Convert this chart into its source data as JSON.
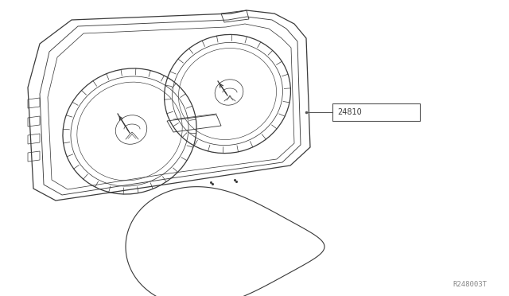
{
  "bg_color": "#ffffff",
  "line_color": "#3a3a3a",
  "line_color2": "#555555",
  "label_text": "24810",
  "diagram_ref": "R248003T",
  "fig_width": 6.4,
  "fig_height": 3.72,
  "dpi": 100
}
